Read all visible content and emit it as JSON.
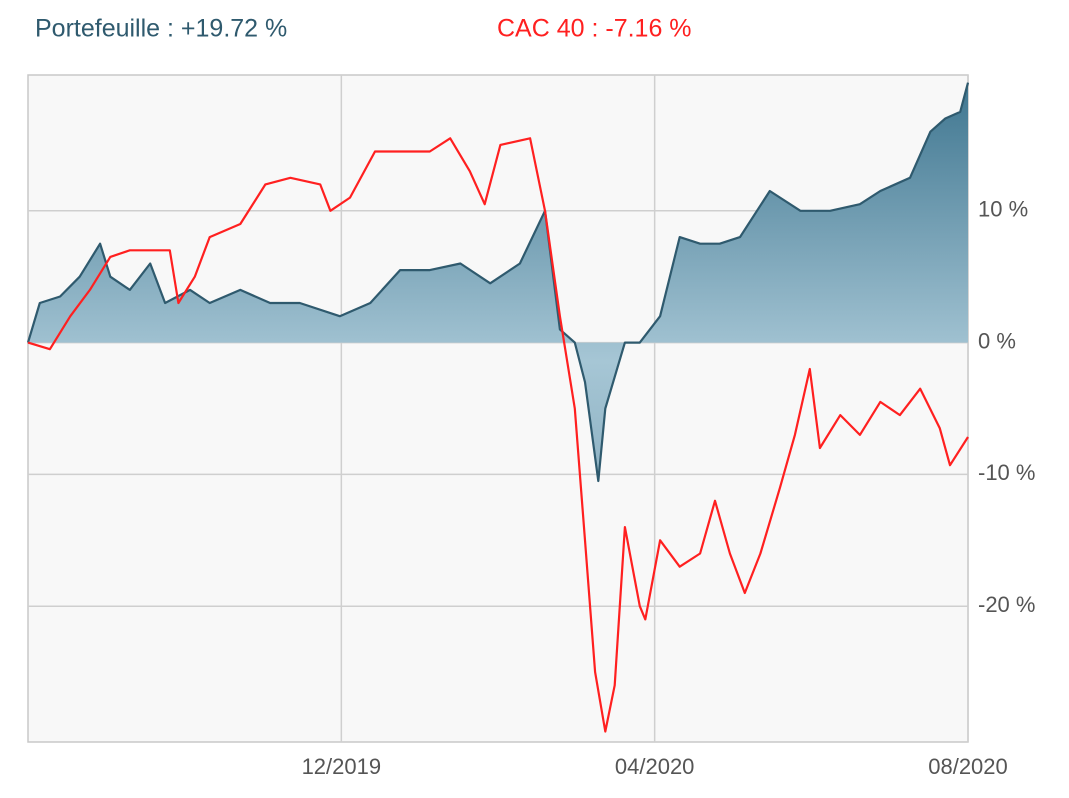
{
  "chart_data": {
    "type": "line",
    "xlim": [
      0,
      12
    ],
    "xticks": [
      {
        "value": 4,
        "label": "12/2019"
      },
      {
        "value": 8,
        "label": "04/2020"
      },
      {
        "value": 12,
        "label": "08/2020"
      }
    ],
    "ylim": [
      -30.3,
      20.3
    ],
    "yticks": [
      {
        "value": 10,
        "label": "10 %"
      },
      {
        "value": 0,
        "label": "0 %"
      },
      {
        "value": -10,
        "label": "-10 %"
      },
      {
        "value": -20,
        "label": "-20 %"
      }
    ],
    "grid": true,
    "series": [
      {
        "name": "Portefeuille : +19.72 %",
        "color": "#2f5a6e",
        "fill": true,
        "x": [
          0,
          0.15,
          0.41,
          0.66,
          0.92,
          1.05,
          1.3,
          1.56,
          1.75,
          2.07,
          2.32,
          2.71,
          3.09,
          3.47,
          3.98,
          4.37,
          4.75,
          5.13,
          5.52,
          5.9,
          6.28,
          6.6,
          6.79,
          6.98,
          7.11,
          7.28,
          7.37,
          7.62,
          7.81,
          8.07,
          8.32,
          8.58,
          8.83,
          9.09,
          9.47,
          9.86,
          10.24,
          10.62,
          10.88,
          11.26,
          11.52,
          11.71,
          11.9,
          12
        ],
        "values": [
          0,
          3,
          3.5,
          5,
          7.5,
          5,
          4,
          6,
          3,
          4,
          3,
          4,
          3,
          3,
          2,
          3,
          5.5,
          5.5,
          6,
          4.5,
          6,
          10,
          1,
          0,
          -3,
          -10.5,
          -5,
          0,
          0,
          2,
          8,
          7.5,
          7.5,
          8,
          11.5,
          10,
          10,
          10.5,
          11.5,
          12.5,
          16,
          17,
          17.5,
          19.72
        ]
      },
      {
        "name": "CAC 40 : -7.16 %",
        "color": "#ff2020",
        "fill": false,
        "x": [
          0,
          0.28,
          0.54,
          0.79,
          1.05,
          1.3,
          1.56,
          1.81,
          1.92,
          2.13,
          2.32,
          2.71,
          3.03,
          3.35,
          3.73,
          3.86,
          4.11,
          4.43,
          4.75,
          5.13,
          5.39,
          5.64,
          5.83,
          6.03,
          6.41,
          6.6,
          6.79,
          6.98,
          7.11,
          7.24,
          7.37,
          7.49,
          7.62,
          7.81,
          7.88,
          8.07,
          8.32,
          8.58,
          8.77,
          8.96,
          9.15,
          9.35,
          9.6,
          9.79,
          9.98,
          10.11,
          10.37,
          10.62,
          10.88,
          11.13,
          11.39,
          11.64,
          11.77,
          12
        ],
        "values": [
          0,
          -0.5,
          2,
          4,
          6.5,
          7,
          7,
          7,
          3,
          5,
          8,
          9,
          12,
          12.5,
          12,
          10,
          11,
          14.5,
          14.5,
          14.5,
          15.5,
          13,
          10.5,
          15,
          15.5,
          10,
          2,
          -5,
          -15,
          -25,
          -29.5,
          -26,
          -14,
          -20,
          -21,
          -15,
          -17,
          -16,
          -12,
          -16,
          -19,
          -16,
          -11,
          -7,
          -2,
          -8,
          -5.5,
          -7,
          -4.5,
          -5.5,
          -3.5,
          -6.5,
          -9.3,
          -7.16
        ]
      }
    ]
  }
}
